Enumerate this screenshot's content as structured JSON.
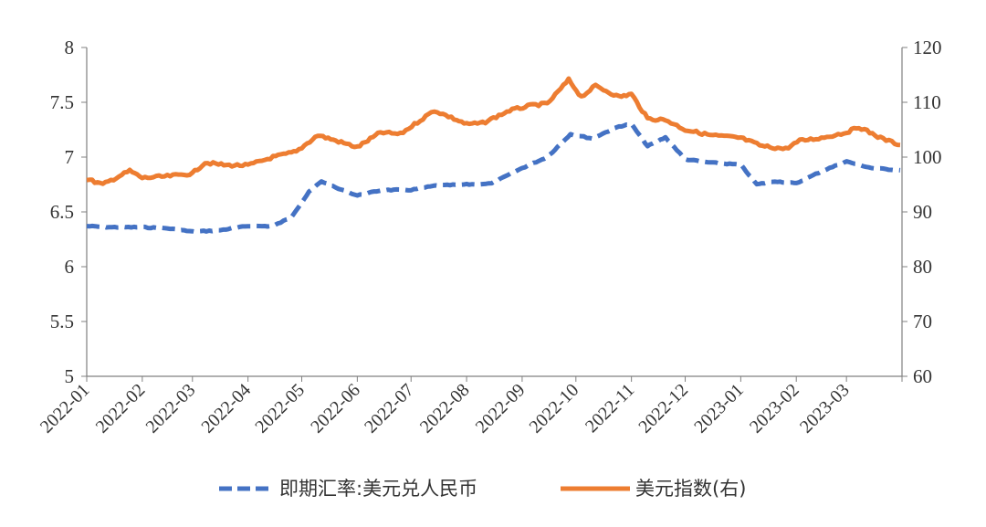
{
  "chart_data": {
    "type": "line",
    "x_categories": [
      "2022-01",
      "2022-02",
      "2022-03",
      "2022-04",
      "2022-05",
      "2022-06",
      "2022-07",
      "2022-08",
      "2022-09",
      "2022-10",
      "2022-11",
      "2022-12",
      "2023-01",
      "2023-02",
      "2023-03"
    ],
    "y_left": {
      "ticks": [
        "8",
        "7.5",
        "7",
        "6.5",
        "6",
        "5.5",
        "5"
      ],
      "range": [
        5,
        8
      ]
    },
    "y_right": {
      "ticks": [
        "120",
        "110",
        "100",
        "90",
        "80",
        "70",
        "60"
      ],
      "range": [
        60,
        120
      ]
    },
    "grid": false,
    "legend_position": "bottom",
    "series": [
      {
        "name": "即期汇率:美元兑人民币",
        "axis": "left",
        "color": "#4472C4",
        "style": "dashed",
        "x": [
          "2022-01-01",
          "2022-01-15",
          "2022-02-01",
          "2022-02-15",
          "2022-03-01",
          "2022-03-15",
          "2022-04-01",
          "2022-04-15",
          "2022-04-25",
          "2022-05-05",
          "2022-05-12",
          "2022-05-20",
          "2022-06-01",
          "2022-06-15",
          "2022-07-01",
          "2022-07-15",
          "2022-08-01",
          "2022-08-15",
          "2022-09-01",
          "2022-09-15",
          "2022-09-28",
          "2022-10-10",
          "2022-10-25",
          "2022-11-01",
          "2022-11-10",
          "2022-11-20",
          "2022-12-01",
          "2022-12-15",
          "2023-01-01",
          "2023-01-10",
          "2023-01-20",
          "2023-02-01",
          "2023-02-15",
          "2023-03-01",
          "2023-03-15",
          "2023-03-31"
        ],
        "values": [
          6.37,
          6.36,
          6.36,
          6.35,
          6.32,
          6.33,
          6.37,
          6.37,
          6.45,
          6.68,
          6.78,
          6.72,
          6.65,
          6.7,
          6.7,
          6.74,
          6.75,
          6.76,
          6.9,
          7.0,
          7.21,
          7.17,
          7.28,
          7.3,
          7.1,
          7.18,
          6.98,
          6.95,
          6.93,
          6.75,
          6.78,
          6.76,
          6.87,
          6.96,
          6.9,
          6.88
        ]
      },
      {
        "name": "美元指数(右)",
        "axis": "right",
        "color": "#ED7D31",
        "style": "solid",
        "x": [
          "2022-01-01",
          "2022-01-10",
          "2022-01-25",
          "2022-02-01",
          "2022-02-15",
          "2022-03-01",
          "2022-03-08",
          "2022-03-20",
          "2022-04-01",
          "2022-04-15",
          "2022-04-28",
          "2022-05-10",
          "2022-05-20",
          "2022-06-01",
          "2022-06-14",
          "2022-06-25",
          "2022-07-14",
          "2022-07-25",
          "2022-08-01",
          "2022-08-10",
          "2022-08-25",
          "2022-09-07",
          "2022-09-15",
          "2022-09-27",
          "2022-10-04",
          "2022-10-12",
          "2022-10-25",
          "2022-11-01",
          "2022-11-10",
          "2022-11-20",
          "2022-12-01",
          "2022-12-15",
          "2023-01-01",
          "2023-01-13",
          "2023-01-26",
          "2023-02-03",
          "2023-02-15",
          "2023-03-01",
          "2023-03-08",
          "2023-03-20",
          "2023-03-31"
        ],
        "values": [
          96.0,
          95.0,
          97.5,
          96.2,
          96.5,
          97.0,
          99.0,
          98.5,
          98.5,
          100.0,
          101.0,
          104.0,
          103.0,
          101.8,
          104.5,
          104.2,
          108.5,
          107.0,
          106.0,
          106.2,
          108.5,
          109.5,
          109.7,
          114.1,
          111.0,
          113.0,
          111.0,
          111.5,
          107.0,
          106.8,
          105.0,
          104.0,
          103.5,
          102.0,
          101.5,
          103.0,
          103.5,
          104.5,
          105.5,
          103.5,
          102.2
        ]
      }
    ]
  }
}
